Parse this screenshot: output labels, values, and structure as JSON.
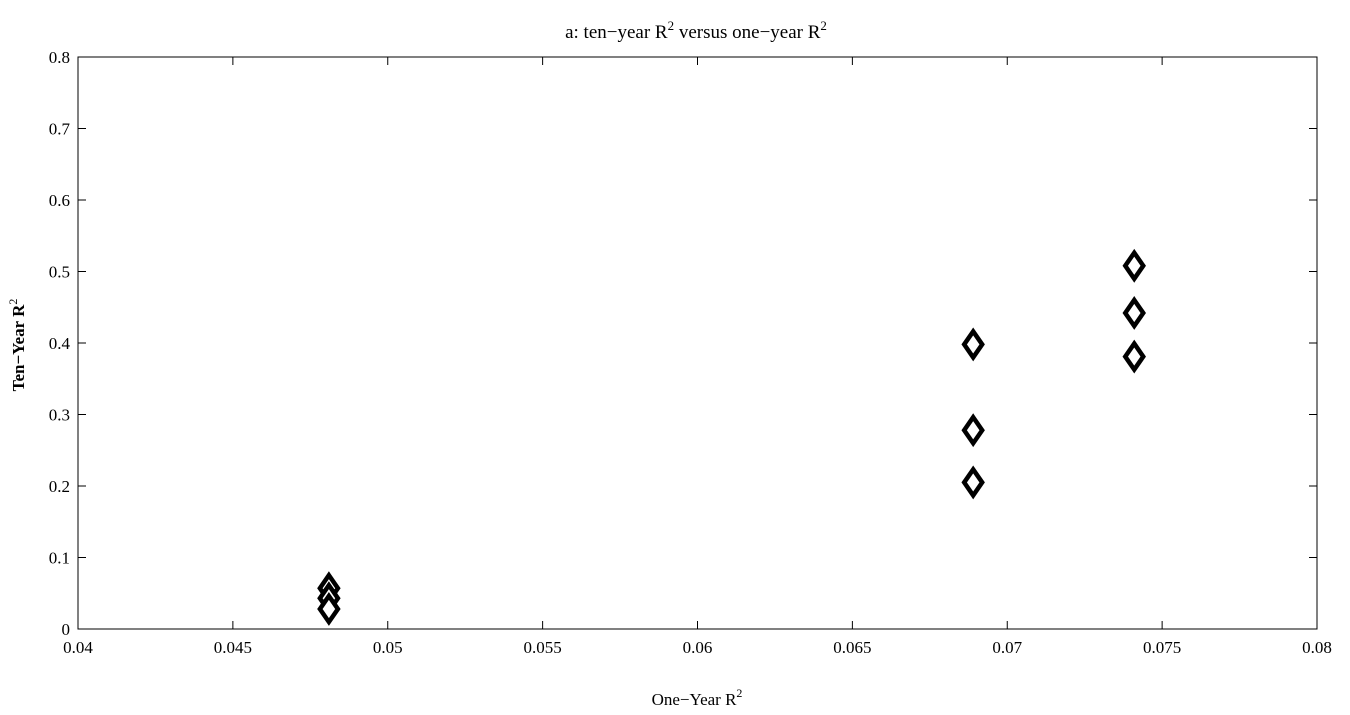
{
  "chart_data": {
    "type": "scatter",
    "title": {
      "main": "a: ten−year R",
      "sup1": "2",
      "mid": " versus one−year R",
      "sup2": "2"
    },
    "xlabel": {
      "main": "One−Year R",
      "sup": "2"
    },
    "ylabel": {
      "main": "Ten−Year R",
      "sup": "2"
    },
    "xlim": [
      0.04,
      0.08
    ],
    "ylim": [
      0,
      0.8
    ],
    "xticks": [
      0.04,
      0.045,
      0.05,
      0.055,
      0.06,
      0.065,
      0.07,
      0.075,
      0.08
    ],
    "xtick_labels": [
      "0.04",
      "0.045",
      "0.05",
      "0.055",
      "0.06",
      "0.065",
      "0.07",
      "0.075",
      "0.08"
    ],
    "yticks": [
      0,
      0.1,
      0.2,
      0.3,
      0.4,
      0.5,
      0.6,
      0.7,
      0.8
    ],
    "ytick_labels": [
      "0",
      "0.1",
      "0.2",
      "0.3",
      "0.4",
      "0.5",
      "0.6",
      "0.7",
      "0.8"
    ],
    "grid": false,
    "marker": "diamond",
    "series": [
      {
        "x": [
          0.0481,
          0.0481,
          0.0481,
          0.0689,
          0.0689,
          0.0689,
          0.0741,
          0.0741,
          0.0741
        ],
        "y": [
          0.057,
          0.043,
          0.028,
          0.398,
          0.278,
          0.205,
          0.508,
          0.442,
          0.381
        ]
      }
    ]
  }
}
